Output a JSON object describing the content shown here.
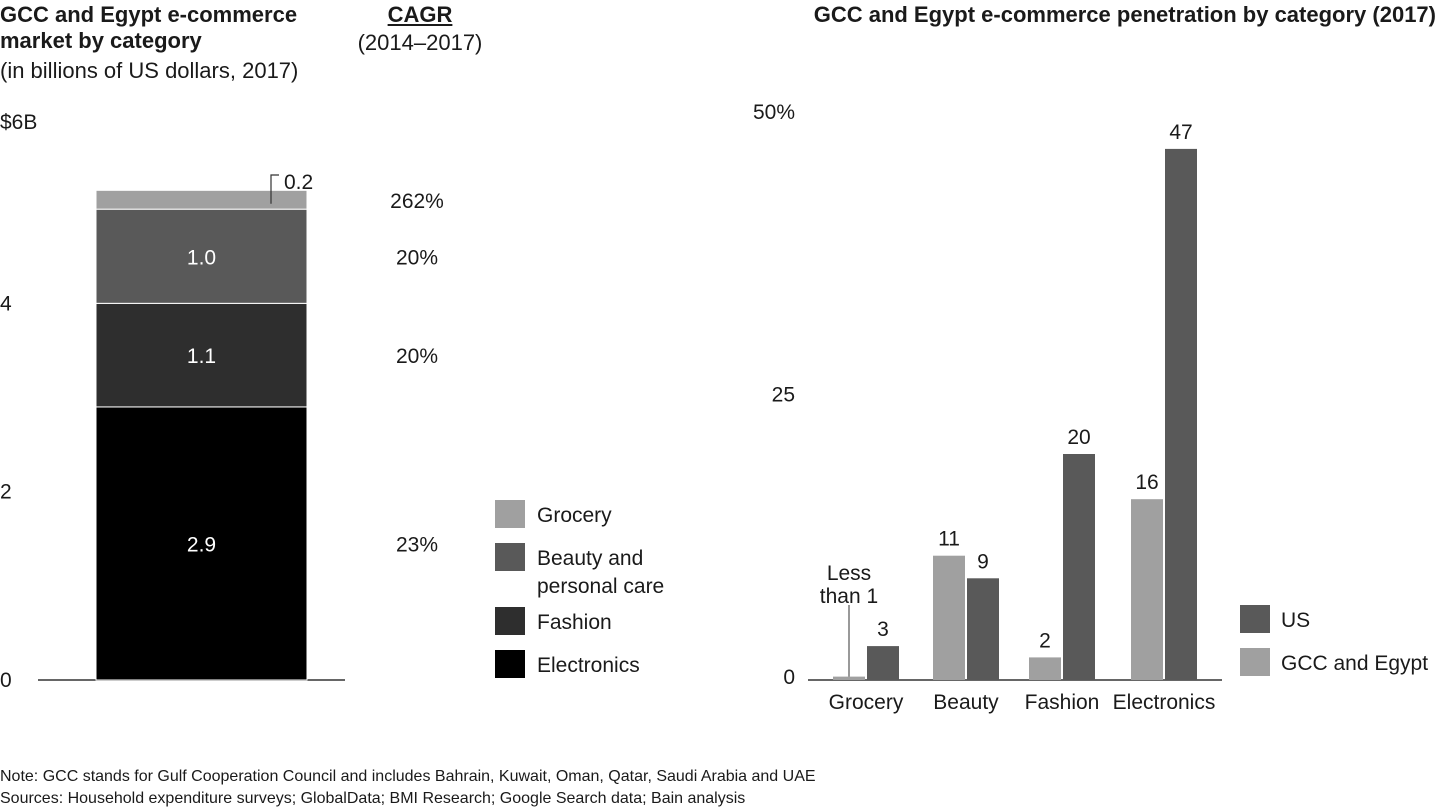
{
  "chart_data": [
    {
      "type": "bar",
      "stacked": true,
      "title": "GCC and Egypt e-commerce market by category",
      "subtitle": "(in billions of US dollars, 2017)",
      "cagr_header": "CAGR",
      "cagr_period": "(2014–2017)",
      "y_ticks": [
        "$6B",
        "4",
        "2",
        "0"
      ],
      "y_tick_values": [
        6,
        4,
        2,
        0
      ],
      "ylim": [
        0,
        6
      ],
      "grid": false,
      "legend_position": "right",
      "segments": [
        {
          "name": "Electronics",
          "value": 2.9,
          "label": "2.9",
          "cagr": "23%",
          "color": "#000000",
          "text_color": "#ffffff"
        },
        {
          "name": "Fashion",
          "value": 1.1,
          "label": "1.1",
          "cagr": "20%",
          "color": "#2e2e2e",
          "text_color": "#ffffff"
        },
        {
          "name": "Beauty and personal care",
          "value": 1.0,
          "label": "1.0",
          "cagr": "20%",
          "color": "#595959",
          "text_color": "#ffffff"
        },
        {
          "name": "Grocery",
          "value": 0.2,
          "label": "0.2",
          "cagr": "262%",
          "color": "#a0a0a0",
          "text_color": "#1a1a1a"
        }
      ],
      "legend": [
        {
          "label_lines": [
            "Grocery"
          ],
          "color": "#a0a0a0"
        },
        {
          "label_lines": [
            "Beauty and",
            "personal care"
          ],
          "color": "#595959"
        },
        {
          "label_lines": [
            "Fashion"
          ],
          "color": "#2e2e2e"
        },
        {
          "label_lines": [
            "Electronics"
          ],
          "color": "#000000"
        }
      ]
    },
    {
      "type": "bar",
      "title": "GCC and Egypt e-commerce penetration by category (2017)",
      "categories": [
        "Grocery",
        "Beauty",
        "Fashion",
        "Electronics"
      ],
      "series": [
        {
          "name": "GCC and Egypt",
          "values": [
            0.3,
            11,
            2,
            16
          ],
          "labels": [
            "",
            "11",
            "2",
            "16"
          ],
          "color": "#a0a0a0"
        },
        {
          "name": "US",
          "values": [
            3,
            9,
            20,
            47
          ],
          "labels": [
            "3",
            "9",
            "20",
            "47"
          ],
          "color": "#595959"
        }
      ],
      "annotation": {
        "category": "Grocery",
        "series": "GCC and Egypt",
        "lines": [
          "Less",
          "than 1"
        ]
      },
      "y_ticks": [
        "50%",
        "25",
        "0"
      ],
      "y_tick_values": [
        50,
        25,
        0
      ],
      "ylim": [
        0,
        50
      ],
      "grid": false,
      "legend_position": "right",
      "legend": [
        {
          "label": "US",
          "color": "#595959"
        },
        {
          "label": "GCC and Egypt",
          "color": "#a0a0a0"
        }
      ]
    }
  ],
  "footer": {
    "note": "Note: GCC stands for Gulf Cooperation Council and includes Bahrain, Kuwait, Oman, Qatar, Saudi Arabia and UAE",
    "sources": "Sources: Household expenditure surveys; GlobalData; BMI Research; Google Search data; Bain analysis"
  }
}
